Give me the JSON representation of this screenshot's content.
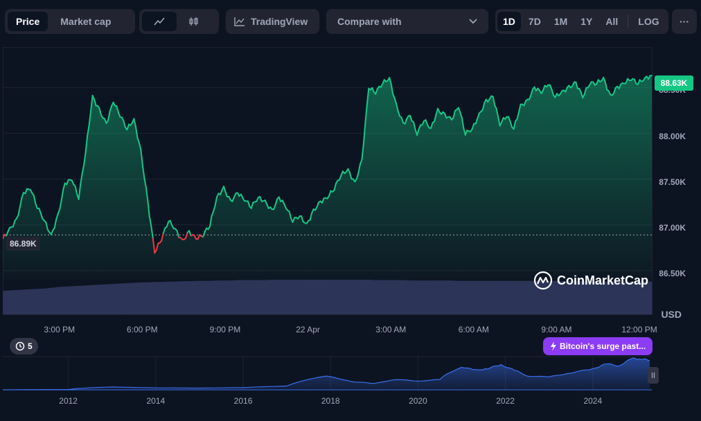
{
  "toolbar": {
    "mode_tabs": [
      "Price",
      "Market cap"
    ],
    "active_mode": "Price",
    "chart_type_icons": [
      "line-chart-icon",
      "candlestick-icon"
    ],
    "tradingview_label": "TradingView",
    "compare_label": "Compare with",
    "timeframes": [
      "1D",
      "7D",
      "1M",
      "1Y",
      "All"
    ],
    "active_timeframe": "1D",
    "log_label": "LOG",
    "more_label": "···"
  },
  "chart": {
    "current_price_tag": "88.63K",
    "open_price_tag": "86.89K",
    "currency": "USD",
    "watermark": "CoinMarketCap",
    "y_ticks": [
      "88.50K",
      "88.00K",
      "87.50K",
      "87.00K",
      "86.50K"
    ],
    "x_ticks": [
      "3:00 PM",
      "6:00 PM",
      "9:00 PM",
      "22 Apr",
      "3:00 AM",
      "6:00 AM",
      "9:00 AM",
      "12:00 PM"
    ],
    "navigator_x_ticks": [
      "2012",
      "2014",
      "2016",
      "2018",
      "2020",
      "2022",
      "2024"
    ],
    "events_count": "5",
    "news_label": "Bitcoin's surge past...",
    "colors": {
      "up": "#16c784",
      "down": "#ea3943",
      "volume": "#2c3558",
      "navigator": "#3a6ff0",
      "news": "#8c3cf5"
    }
  },
  "chart_data": {
    "type": "line",
    "title": "",
    "ylabel": "USD",
    "ylim": [
      86400,
      88700
    ],
    "baseline": 86890,
    "x_hours": [
      0,
      0.25,
      0.5,
      0.75,
      1,
      1.25,
      1.5,
      1.75,
      2,
      2.25,
      2.5,
      2.75,
      3,
      3.25,
      3.5,
      3.75,
      4,
      4.25,
      4.5,
      4.75,
      5,
      5.25,
      5.5,
      5.75,
      6,
      6.25,
      6.5,
      6.75,
      7,
      7.25,
      7.5,
      7.75,
      8,
      8.25,
      8.5,
      8.75,
      9,
      9.25,
      9.5,
      9.75,
      10,
      10.25,
      10.5,
      10.75,
      11,
      11.25,
      11.5,
      11.75,
      12,
      12.25,
      12.5,
      12.75,
      13,
      13.25,
      13.5,
      13.75,
      14,
      14.25,
      14.5,
      14.75,
      15,
      15.25,
      15.5,
      15.75,
      16,
      16.25,
      16.5,
      16.75,
      17,
      17.25,
      17.5,
      17.75,
      18,
      18.25,
      18.5,
      18.75,
      19,
      19.25,
      19.5,
      19.75,
      20,
      20.25,
      20.5,
      20.75,
      21,
      21.25,
      21.5,
      21.75,
      22,
      22.25,
      22.5,
      22.75,
      23,
      23.25,
      23.5
    ],
    "series": [
      {
        "values": [
          86850,
          86950,
          87050,
          87350,
          87400,
          87200,
          87050,
          86880,
          87100,
          87450,
          87500,
          87300,
          87800,
          88400,
          88250,
          88100,
          88350,
          88200,
          88050,
          88150,
          87800,
          87250,
          86700,
          86850,
          87050,
          86950,
          86820,
          86920,
          86850,
          86890,
          87000,
          87300,
          87400,
          87250,
          87350,
          87280,
          87200,
          87300,
          87250,
          87150,
          87300,
          87200,
          87050,
          87100,
          87000,
          87150,
          87250,
          87300,
          87400,
          87550,
          87600,
          87450,
          87700,
          88500,
          88450,
          88550,
          88600,
          88300,
          88100,
          88200,
          88000,
          88150,
          88050,
          88250,
          88200,
          88150,
          88300,
          88000,
          88050,
          88200,
          88350,
          88400,
          88100,
          88200,
          88050,
          88300,
          88350,
          88500,
          88450,
          88550,
          88400,
          88450,
          88500,
          88550,
          88400,
          88550,
          88550,
          88600,
          88400,
          88500,
          88550,
          88600,
          88550,
          88600,
          88630
        ]
      }
    ],
    "volume_profile": [
      0.62,
      0.63,
      0.64,
      0.65,
      0.66,
      0.67,
      0.68,
      0.7,
      0.72,
      0.73,
      0.74,
      0.75,
      0.76,
      0.77,
      0.78,
      0.79,
      0.8,
      0.81,
      0.82,
      0.83,
      0.84,
      0.84,
      0.85,
      0.85,
      0.86,
      0.86,
      0.87,
      0.87,
      0.88,
      0.88,
      0.88,
      0.89,
      0.89,
      0.89,
      0.9,
      0.9,
      0.9,
      0.9,
      0.9,
      0.91,
      0.91,
      0.91,
      0.91,
      0.91,
      0.91,
      0.91,
      0.91,
      0.91,
      0.91,
      0.91,
      0.91,
      0.91,
      0.91,
      0.91,
      0.9,
      0.9,
      0.9,
      0.9,
      0.9,
      0.89,
      0.89,
      0.89,
      0.89,
      0.89,
      0.89,
      0.89,
      0.88,
      0.88,
      0.88,
      0.88,
      0.88,
      0.88,
      0.88,
      0.88,
      0.88,
      0.88,
      0.88,
      0.88,
      0.88,
      0.88,
      0.88,
      0.87,
      0.87,
      0.87,
      0.87,
      0.87,
      0.86,
      0.86,
      0.86,
      0.86,
      0.86,
      0.86,
      0.86,
      0.86,
      0.86
    ],
    "navigator": {
      "years": [
        2010.5,
        2012,
        2013,
        2014,
        2015,
        2016,
        2017,
        2017.9,
        2018.5,
        2019,
        2019.5,
        2020,
        2020.5,
        2021,
        2021.3,
        2021.6,
        2021.9,
        2022.2,
        2022.5,
        2023,
        2023.5,
        2024,
        2024.3,
        2024.6,
        2024.9,
        2025.1,
        2025.3
      ],
      "prices": [
        0,
        10,
        800,
        400,
        300,
        500,
        1500,
        19000,
        7000,
        4000,
        11000,
        8000,
        11000,
        55000,
        40000,
        47000,
        65000,
        40000,
        20000,
        17000,
        30000,
        45000,
        70000,
        60000,
        100000,
        102000,
        88000
      ]
    }
  }
}
